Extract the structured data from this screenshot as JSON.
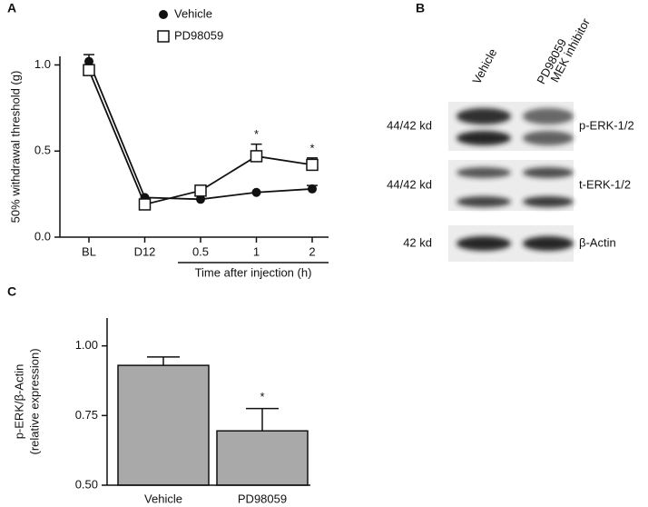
{
  "panels": [
    "A",
    "B",
    "C"
  ],
  "chart_data": [
    {
      "type": "line",
      "ylabel": "50% withdrawal threshold (g)",
      "categories": [
        "BL",
        "D12",
        "0.5",
        "1",
        "2"
      ],
      "series": [
        {
          "name": "Vehicle",
          "color": "#111111",
          "marker": "circle",
          "values": [
            1.02,
            0.23,
            0.22,
            0.26,
            0.28
          ],
          "errors": [
            0.04,
            null,
            null,
            null,
            0.02
          ]
        },
        {
          "name": "PD98059",
          "color": "#111111",
          "marker": "square",
          "values": [
            0.97,
            0.19,
            0.27,
            0.47,
            0.42
          ],
          "errors": [
            null,
            null,
            null,
            0.07,
            0.04
          ]
        }
      ],
      "annotations": [
        null,
        null,
        null,
        "*",
        "*"
      ],
      "xbracket_label": "Time after injection (h)",
      "ylim": [
        0,
        1.05
      ],
      "yticks": [
        {
          "value": 0,
          "label": "0.0"
        },
        0.5,
        {
          "value": 1,
          "label": "1.0"
        }
      ]
    },
    {
      "type": "bar",
      "ylabel": [
        "p-ERK/β-Actin",
        "(relative expression)"
      ],
      "categories": [
        "Vehicle",
        "PD98059"
      ],
      "values": [
        0.93,
        0.695
      ],
      "errors": [
        0.03,
        0.08
      ],
      "color": "#a9a9a9",
      "annotations": [
        null,
        "*"
      ],
      "ylim": [
        0.5,
        1.1
      ],
      "yticks": [
        {
          "value": 0.5,
          "label": "0.50"
        },
        0.75,
        {
          "value": 1,
          "label": "1.00"
        }
      ]
    }
  ],
  "blot": {
    "columns": [
      [
        "Vehicle"
      ],
      [
        "PD98059",
        "MEK inhibitor"
      ]
    ],
    "rows": [
      {
        "weight": "44/42 kd",
        "protein": "p-ERK-1/2"
      },
      {
        "weight": "44/42 kd",
        "protein": "t-ERK-1/2"
      },
      {
        "weight": "42 kd",
        "protein": "β-Actin"
      }
    ]
  }
}
